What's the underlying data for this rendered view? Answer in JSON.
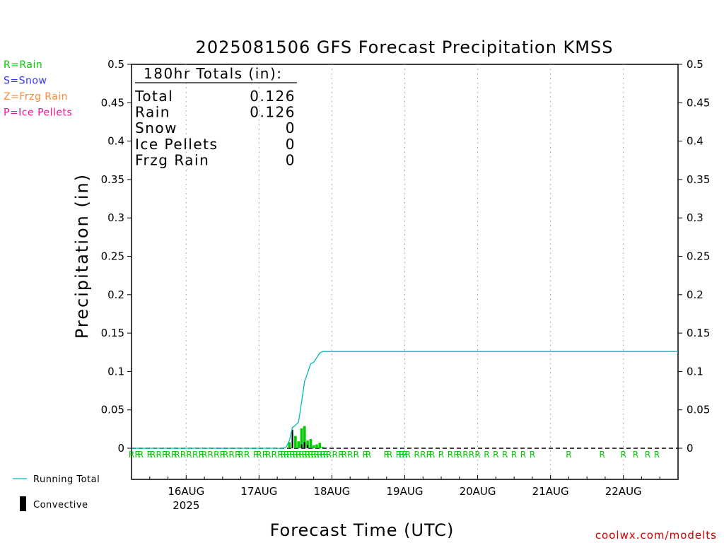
{
  "chart_data": {
    "type": "bar",
    "title": "2025081506 GFS Forecast Precipitation KMSS",
    "ylabel": "Precipitation (in)",
    "xlabel": "Forecast Time (UTC)",
    "ylim": [
      0,
      0.5
    ],
    "yticks": [
      "0",
      "0.05",
      "0.1",
      "0.15",
      "0.2",
      "0.25",
      "0.3",
      "0.35",
      "0.4",
      "0.45",
      "0.5"
    ],
    "x_unit": "hours from 15AUG 06Z",
    "xlim": [
      0,
      180
    ],
    "x_ticks": [
      {
        "hour": 18,
        "label": "16AUG",
        "sub": "2025"
      },
      {
        "hour": 42,
        "label": "17AUG",
        "sub": ""
      },
      {
        "hour": 66,
        "label": "18AUG",
        "sub": ""
      },
      {
        "hour": 90,
        "label": "19AUG",
        "sub": ""
      },
      {
        "hour": 114,
        "label": "20AUG",
        "sub": ""
      },
      {
        "hour": 138,
        "label": "21AUG",
        "sub": ""
      },
      {
        "hour": 162,
        "label": "22AUG",
        "sub": ""
      }
    ],
    "grid": true,
    "series": [
      {
        "name": "Rain",
        "color": "#00cc00",
        "x": [
          52,
          54,
          55,
          56,
          57,
          58,
          59,
          60,
          61,
          62,
          63
        ],
        "values": [
          0.008,
          0.016,
          0.009,
          0.026,
          0.029,
          0.01,
          0.012,
          0.004,
          0.005,
          0.007,
          0.002
        ]
      },
      {
        "name": "Convective",
        "color": "#000000",
        "x": [
          53,
          56,
          57,
          58
        ],
        "values": [
          0.024,
          0.005,
          0.008,
          0.004
        ]
      },
      {
        "name": "Running Total",
        "color": "#00bbbb",
        "x": [
          0,
          50,
          51,
          52,
          53,
          54,
          55,
          56,
          57,
          58,
          59,
          60,
          61,
          62,
          63,
          64,
          180
        ],
        "values": [
          0,
          0,
          0.002,
          0.01,
          0.027,
          0.03,
          0.034,
          0.06,
          0.087,
          0.098,
          0.11,
          0.112,
          0.118,
          0.124,
          0.126,
          0.126,
          0.126
        ]
      }
    ],
    "totals": {
      "header": "180hr Totals (in):",
      "rows": [
        {
          "label": "Total",
          "value": "0.126"
        },
        {
          "label": "Rain",
          "value": "0.126"
        },
        {
          "label": "Snow",
          "value": "0"
        },
        {
          "label": "Ice Pellets",
          "value": "0"
        },
        {
          "label": "Frzg Rain",
          "value": "0"
        }
      ]
    },
    "ptype_legend": [
      {
        "text": "R=Rain",
        "color": "#00cc00"
      },
      {
        "text": "S=Snow",
        "color": "#3333ff"
      },
      {
        "text": "Z=Frzg Rain",
        "color": "#ff8833"
      },
      {
        "text": "P=Ice Pellets",
        "color": "#ee1199"
      }
    ],
    "bottom_legend": {
      "running_total": "Running Total",
      "convective": "Convective"
    },
    "ptype_marker": {
      "text": "R",
      "color": "#00cc00",
      "hours": [
        0,
        2,
        3,
        6,
        7,
        9,
        11,
        12,
        14,
        15,
        17,
        19,
        21,
        23,
        24,
        26,
        28,
        30,
        31,
        33,
        35,
        36,
        38,
        41,
        42,
        44,
        45,
        47,
        49,
        50,
        51,
        52,
        53,
        54,
        55,
        56,
        57,
        58,
        59,
        60,
        61,
        62,
        63,
        64,
        65,
        67,
        69,
        70,
        72,
        74,
        77,
        78,
        84,
        85,
        88,
        89,
        90,
        91,
        94,
        96,
        98,
        99,
        102,
        105,
        107,
        108,
        110,
        112,
        114,
        117,
        120,
        123,
        126,
        129,
        132,
        144,
        155,
        162,
        166,
        170,
        173
      ]
    },
    "credit": "coolwx.com/modelts"
  }
}
